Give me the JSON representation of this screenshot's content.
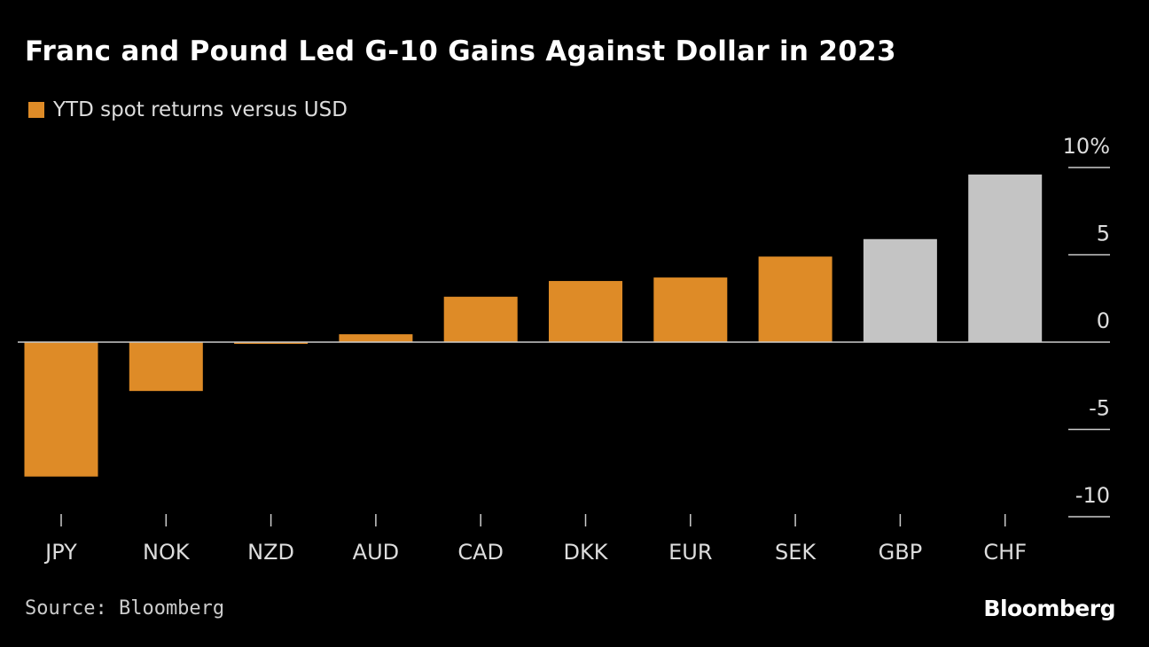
{
  "chart_data": {
    "type": "bar",
    "title": "Franc and Pound Led G-10 Gains Against Dollar in 2023",
    "legend": [
      "YTD spot returns versus USD"
    ],
    "categories": [
      "JPY",
      "NOK",
      "NZD",
      "AUD",
      "CAD",
      "DKK",
      "EUR",
      "SEK",
      "GBP",
      "CHF"
    ],
    "values": [
      -7.7,
      -2.8,
      -0.1,
      0.45,
      2.6,
      3.5,
      3.7,
      4.9,
      5.9,
      9.6
    ],
    "highlight": [
      "GBP",
      "CHF"
    ],
    "ylim": [
      -10,
      10
    ],
    "yticks": [
      10,
      5,
      0,
      -5,
      -10
    ],
    "ytick_labels": [
      "10%",
      "5",
      "0",
      "-5",
      "-10"
    ],
    "xlabel": "",
    "ylabel": "",
    "colors": {
      "default": "#de8b27",
      "highlight": "#c4c4c4",
      "background": "#000000"
    }
  },
  "source": "Source: Bloomberg",
  "brand": "Bloomberg"
}
